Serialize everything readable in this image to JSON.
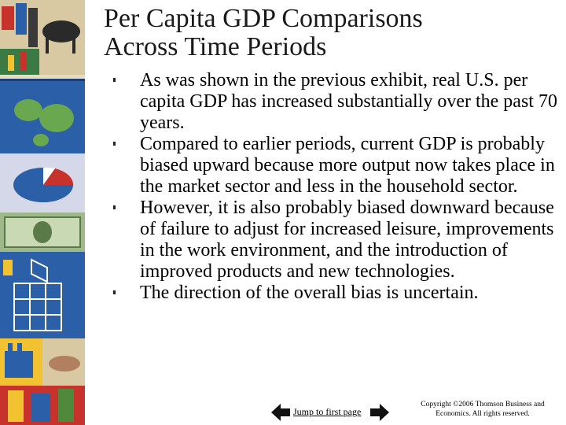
{
  "title": {
    "line1": "Per Capita GDP Comparisons",
    "line2": "Across Time Periods"
  },
  "bullets": [
    "As was shown in the previous exhibit, real U.S. per capita GDP has increased substantially over the past 70 years.",
    "Compared to earlier periods, current GDP is probably biased upward because more output now takes place in the market sector and less in the household sector.",
    "However, it is also probably biased downward because of failure to adjust for increased leisure, improvements in the work environment, and the introduction of improved products and new technologies.",
    "The direction of the overall bias is uncertain."
  ],
  "footer": {
    "jump_link": "Jump to first page",
    "copyright_line1": "Copyright ©2006  Thomson Business and",
    "copyright_line2": "Economics. All rights reserved."
  },
  "colors": {
    "sidebar_base": "#2b5fa8",
    "sidebar_red": "#c8322c",
    "sidebar_yellow": "#f2c230",
    "sidebar_green": "#4f8a3c"
  }
}
